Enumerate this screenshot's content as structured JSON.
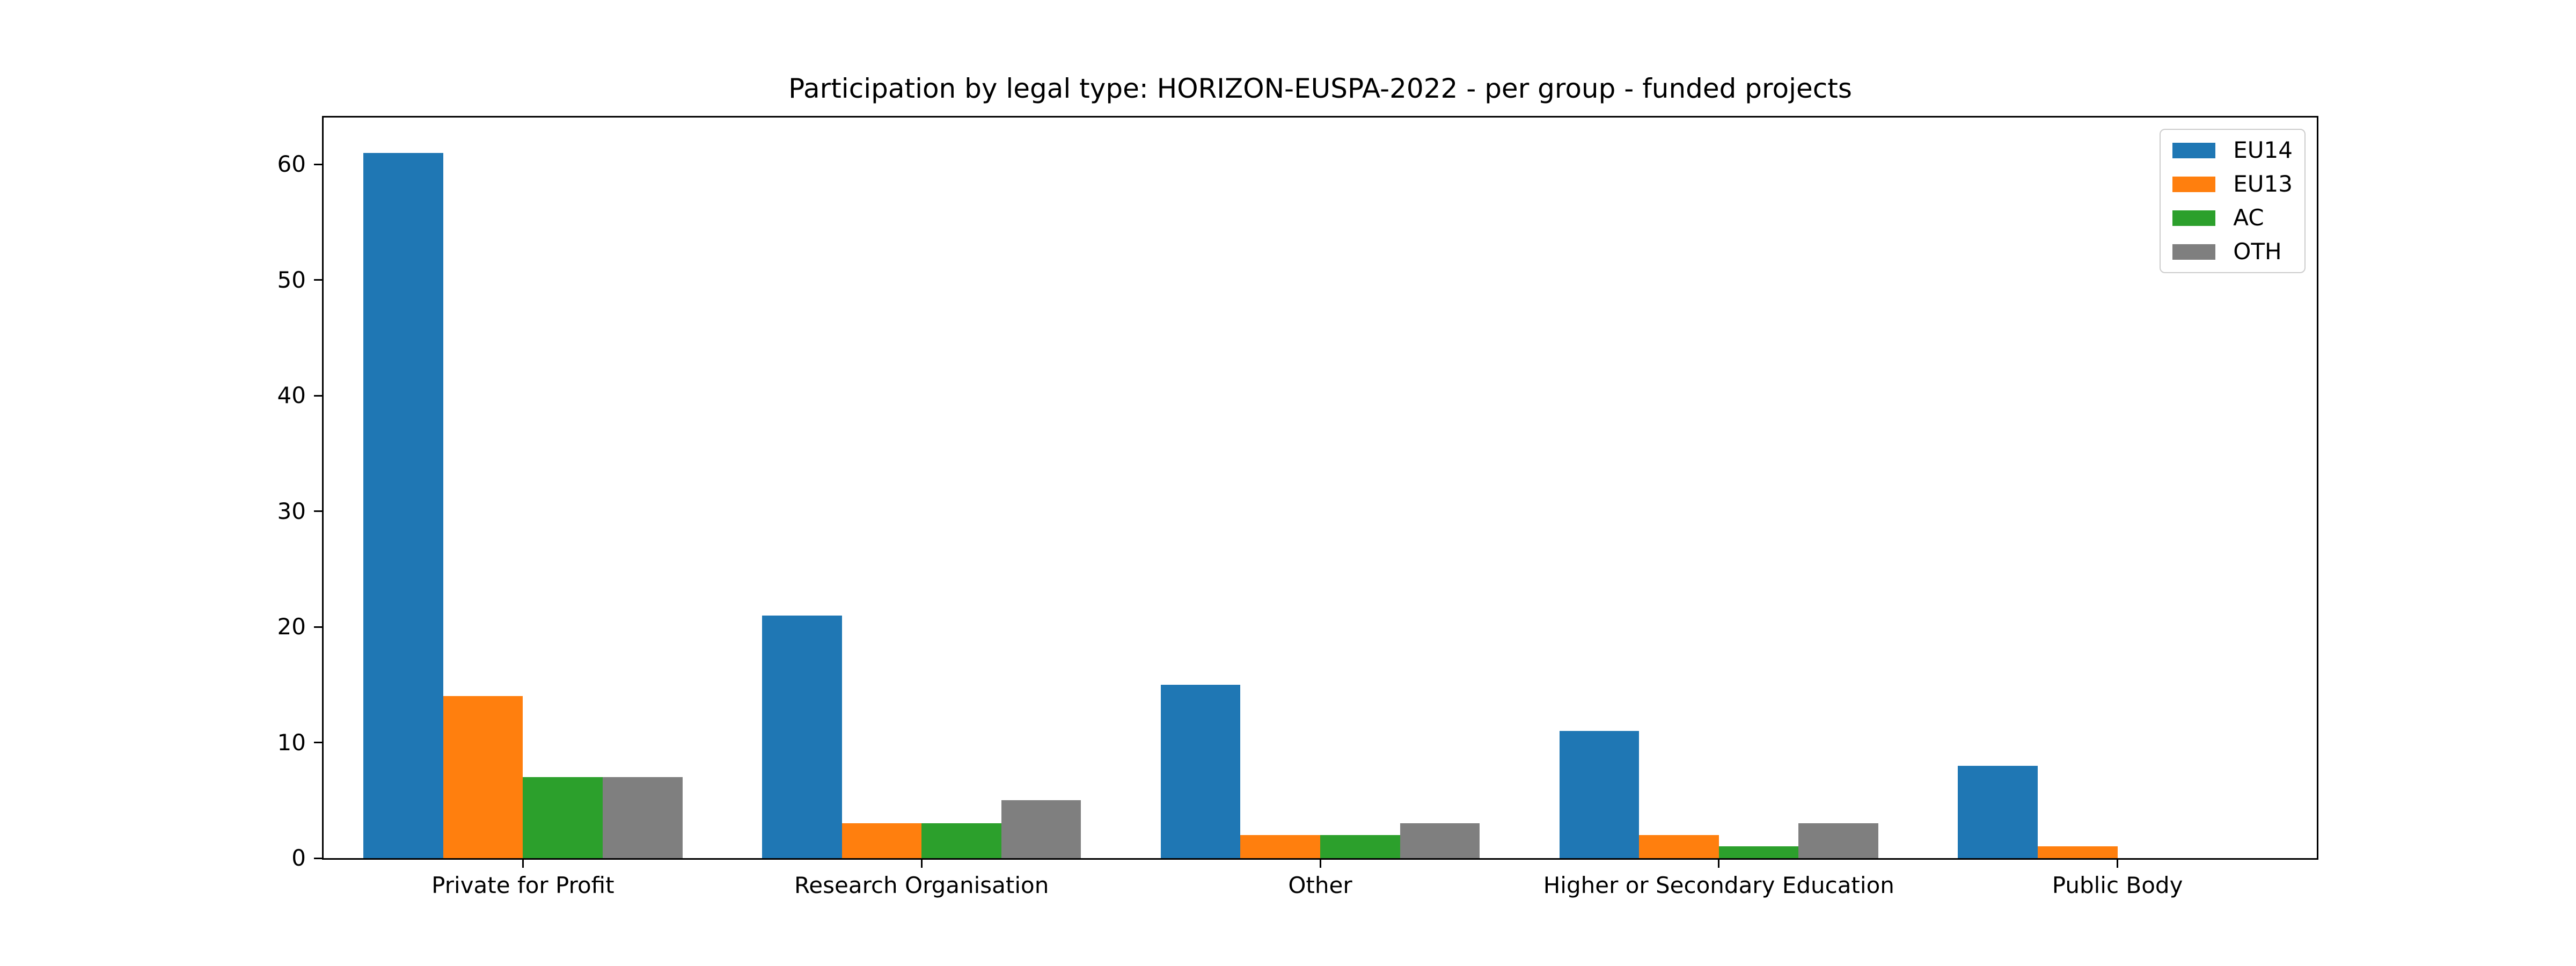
{
  "chart_data": {
    "type": "bar",
    "title": "Participation by legal type: HORIZON-EUSPA-2022 - per group - funded projects",
    "categories": [
      "Private for Profit",
      "Research Organisation",
      "Other",
      "Higher or Secondary Education",
      "Public Body"
    ],
    "series": [
      {
        "name": "EU14",
        "color": "#1f77b4",
        "values": [
          61,
          21,
          15,
          11,
          8
        ]
      },
      {
        "name": "EU13",
        "color": "#ff7f0e",
        "values": [
          14,
          3,
          2,
          2,
          1
        ]
      },
      {
        "name": "AC",
        "color": "#2ca02c",
        "values": [
          7,
          3,
          2,
          1,
          0
        ]
      },
      {
        "name": "OTH",
        "color": "#7f7f7f",
        "values": [
          7,
          5,
          3,
          3,
          0
        ]
      }
    ],
    "xlabel": "",
    "ylabel": "",
    "yticks": [
      0,
      10,
      20,
      30,
      40,
      50,
      60
    ],
    "ylim": [
      0,
      64.05
    ],
    "grid": false,
    "legend_position": "upper right",
    "bar_group_width_fraction": 0.8,
    "axis_color": "#000000",
    "legend_border_color": "#cccccc",
    "background_color": "#ffffff"
  }
}
